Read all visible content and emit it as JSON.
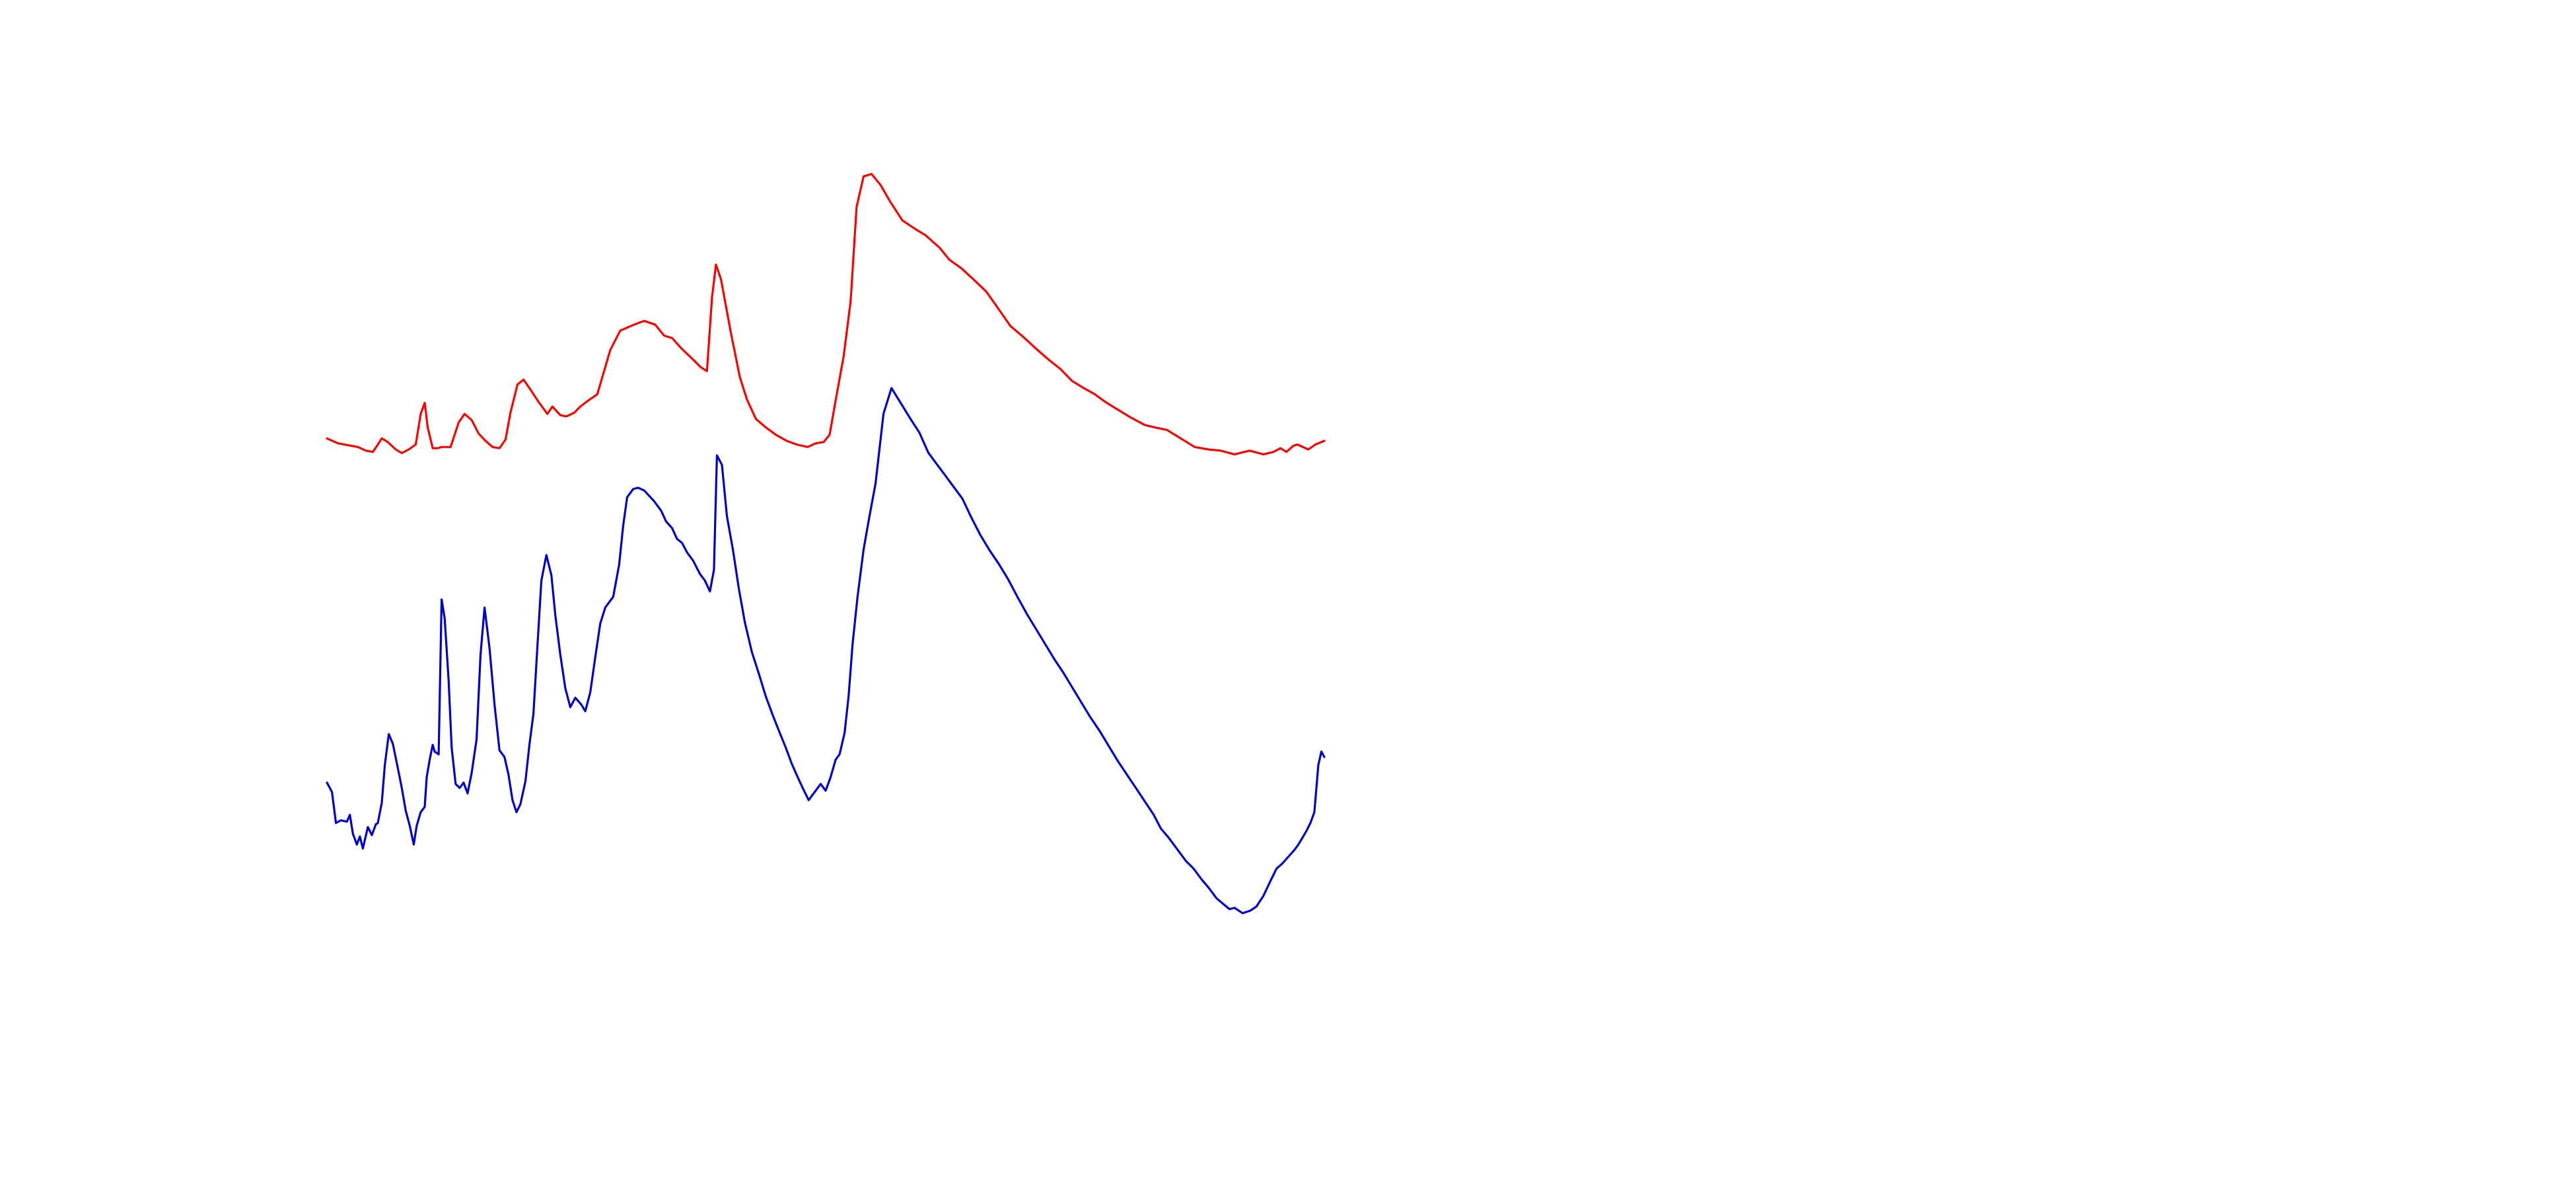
{
  "chart_data": {
    "type": "line",
    "title": "",
    "xlabel": "",
    "ylabel": "",
    "axes_visible": false,
    "grid": false,
    "legend": "none",
    "x_range": [
      0,
      100
    ],
    "y_range": [
      0,
      100
    ],
    "series": [
      {
        "color": "#ff0000",
        "points": [
          [
            0.0,
            52.6
          ],
          [
            1.1,
            52.2
          ],
          [
            3.1,
            51.9
          ],
          [
            3.9,
            51.6
          ],
          [
            4.6,
            51.5
          ],
          [
            5.1,
            52.1
          ],
          [
            5.5,
            52.6
          ],
          [
            6.1,
            52.3
          ],
          [
            6.9,
            51.7
          ],
          [
            7.5,
            51.4
          ],
          [
            8.2,
            51.7
          ],
          [
            8.9,
            52.1
          ],
          [
            9.4,
            54.6
          ],
          [
            9.8,
            55.5
          ],
          [
            10.1,
            53.5
          ],
          [
            10.6,
            51.8
          ],
          [
            11.1,
            51.8
          ],
          [
            11.5,
            51.9
          ],
          [
            12.4,
            51.9
          ],
          [
            13.2,
            53.9
          ],
          [
            13.8,
            54.6
          ],
          [
            14.5,
            54.1
          ],
          [
            15.2,
            53.0
          ],
          [
            15.9,
            52.4
          ],
          [
            16.6,
            51.9
          ],
          [
            17.3,
            51.8
          ],
          [
            17.9,
            52.5
          ],
          [
            18.4,
            54.7
          ],
          [
            19.1,
            57.0
          ],
          [
            19.7,
            57.4
          ],
          [
            20.4,
            56.6
          ],
          [
            21.2,
            55.6
          ],
          [
            22.1,
            54.6
          ],
          [
            22.6,
            55.2
          ],
          [
            23.4,
            54.5
          ],
          [
            24.0,
            54.4
          ],
          [
            24.8,
            54.7
          ],
          [
            25.4,
            55.2
          ],
          [
            26.2,
            55.7
          ],
          [
            27.1,
            56.2
          ],
          [
            28.4,
            59.8
          ],
          [
            29.4,
            61.4
          ],
          [
            30.8,
            61.9
          ],
          [
            31.8,
            62.2
          ],
          [
            32.9,
            61.9
          ],
          [
            33.8,
            61.0
          ],
          [
            34.6,
            60.8
          ],
          [
            35.6,
            59.9
          ],
          [
            36.5,
            59.2
          ],
          [
            37.5,
            58.4
          ],
          [
            38.1,
            58.1
          ],
          [
            38.6,
            64.1
          ],
          [
            39.0,
            66.8
          ],
          [
            39.5,
            65.6
          ],
          [
            40.5,
            61.2
          ],
          [
            41.4,
            57.6
          ],
          [
            42.1,
            55.8
          ],
          [
            43.0,
            54.2
          ],
          [
            44.0,
            53.5
          ],
          [
            45.0,
            52.9
          ],
          [
            46.1,
            52.4
          ],
          [
            47.1,
            52.1
          ],
          [
            48.2,
            51.9
          ],
          [
            49.0,
            52.2
          ],
          [
            49.8,
            52.3
          ],
          [
            50.4,
            52.9
          ],
          [
            51.0,
            55.7
          ],
          [
            51.8,
            59.3
          ],
          [
            52.5,
            63.8
          ],
          [
            53.1,
            71.5
          ],
          [
            53.8,
            74.0
          ],
          [
            54.6,
            74.2
          ],
          [
            55.5,
            73.3
          ],
          [
            56.5,
            71.9
          ],
          [
            57.7,
            70.4
          ],
          [
            59.0,
            69.7
          ],
          [
            60.0,
            69.2
          ],
          [
            61.4,
            68.2
          ],
          [
            62.4,
            67.2
          ],
          [
            63.6,
            66.5
          ],
          [
            64.8,
            65.6
          ],
          [
            66.1,
            64.6
          ],
          [
            67.4,
            63.1
          ],
          [
            68.5,
            61.8
          ],
          [
            69.8,
            60.9
          ],
          [
            71.0,
            60.0
          ],
          [
            72.4,
            59.0
          ],
          [
            73.5,
            58.3
          ],
          [
            74.7,
            57.3
          ],
          [
            75.9,
            56.7
          ],
          [
            77.0,
            56.2
          ],
          [
            78.0,
            55.6
          ],
          [
            79.4,
            54.9
          ],
          [
            80.6,
            54.3
          ],
          [
            82.0,
            53.7
          ],
          [
            83.0,
            53.5
          ],
          [
            84.2,
            53.3
          ],
          [
            85.6,
            52.6
          ],
          [
            87.0,
            51.9
          ],
          [
            88.4,
            51.7
          ],
          [
            89.6,
            51.6
          ],
          [
            91.0,
            51.3
          ],
          [
            92.5,
            51.6
          ],
          [
            93.9,
            51.3
          ],
          [
            94.9,
            51.5
          ],
          [
            95.6,
            51.8
          ],
          [
            96.2,
            51.5
          ],
          [
            96.9,
            52.0
          ],
          [
            97.3,
            52.1
          ],
          [
            98.4,
            51.7
          ],
          [
            99.1,
            52.1
          ],
          [
            100.0,
            52.4
          ]
        ]
      },
      {
        "color": "#0000cc",
        "points": [
          [
            0.0,
            10.6
          ],
          [
            0.5,
            9.9
          ],
          [
            0.9,
            7.6
          ],
          [
            1.4,
            7.8
          ],
          [
            2.0,
            7.7
          ],
          [
            2.3,
            8.2
          ],
          [
            2.6,
            6.8
          ],
          [
            3.0,
            6.0
          ],
          [
            3.3,
            6.6
          ],
          [
            3.6,
            5.7
          ],
          [
            4.1,
            7.3
          ],
          [
            4.5,
            6.7
          ],
          [
            4.9,
            7.5
          ],
          [
            5.1,
            7.6
          ],
          [
            5.5,
            9.1
          ],
          [
            5.8,
            11.9
          ],
          [
            6.2,
            14.2
          ],
          [
            6.6,
            13.5
          ],
          [
            7.1,
            11.7
          ],
          [
            7.5,
            10.2
          ],
          [
            7.9,
            8.5
          ],
          [
            8.3,
            7.4
          ],
          [
            8.7,
            6.0
          ],
          [
            9.0,
            7.4
          ],
          [
            9.4,
            8.4
          ],
          [
            9.8,
            8.8
          ],
          [
            10.0,
            11.0
          ],
          [
            10.3,
            12.3
          ],
          [
            10.6,
            13.4
          ],
          [
            10.8,
            12.9
          ],
          [
            11.2,
            12.7
          ],
          [
            11.5,
            24.2
          ],
          [
            11.8,
            22.8
          ],
          [
            12.2,
            18.2
          ],
          [
            12.5,
            13.2
          ],
          [
            12.9,
            10.5
          ],
          [
            13.3,
            10.2
          ],
          [
            13.7,
            10.6
          ],
          [
            14.1,
            9.8
          ],
          [
            14.5,
            11.3
          ],
          [
            15.0,
            13.8
          ],
          [
            15.4,
            20.1
          ],
          [
            15.8,
            23.6
          ],
          [
            16.3,
            20.6
          ],
          [
            16.8,
            16.4
          ],
          [
            17.3,
            13.0
          ],
          [
            17.8,
            12.5
          ],
          [
            18.2,
            11.2
          ],
          [
            18.6,
            9.3
          ],
          [
            19.0,
            8.4
          ],
          [
            19.4,
            9.0
          ],
          [
            19.9,
            10.7
          ],
          [
            20.3,
            13.4
          ],
          [
            20.7,
            15.7
          ],
          [
            21.1,
            20.7
          ],
          [
            21.5,
            25.6
          ],
          [
            22.0,
            27.5
          ],
          [
            22.5,
            26.0
          ],
          [
            22.9,
            23.0
          ],
          [
            23.4,
            20.1
          ],
          [
            23.9,
            17.6
          ],
          [
            24.4,
            16.2
          ],
          [
            24.9,
            16.9
          ],
          [
            25.5,
            16.4
          ],
          [
            25.9,
            15.9
          ],
          [
            26.4,
            17.3
          ],
          [
            26.9,
            19.9
          ],
          [
            27.4,
            22.4
          ],
          [
            27.9,
            23.6
          ],
          [
            28.7,
            24.4
          ],
          [
            29.3,
            26.8
          ],
          [
            29.7,
            29.7
          ],
          [
            30.1,
            31.8
          ],
          [
            30.7,
            32.4
          ],
          [
            31.2,
            32.5
          ],
          [
            31.8,
            32.3
          ],
          [
            32.3,
            31.9
          ],
          [
            32.8,
            31.5
          ],
          [
            33.5,
            30.8
          ],
          [
            34.0,
            30.0
          ],
          [
            34.6,
            29.5
          ],
          [
            35.1,
            28.7
          ],
          [
            35.6,
            28.4
          ],
          [
            36.1,
            27.7
          ],
          [
            36.7,
            27.1
          ],
          [
            37.4,
            26.1
          ],
          [
            37.9,
            25.6
          ],
          [
            38.4,
            24.8
          ],
          [
            38.8,
            26.4
          ],
          [
            39.1,
            34.9
          ],
          [
            39.6,
            34.2
          ],
          [
            40.1,
            30.4
          ],
          [
            40.7,
            27.9
          ],
          [
            41.3,
            25.0
          ],
          [
            41.9,
            22.5
          ],
          [
            42.6,
            20.3
          ],
          [
            43.3,
            18.7
          ],
          [
            44.0,
            17.0
          ],
          [
            44.7,
            15.6
          ],
          [
            45.4,
            14.3
          ],
          [
            46.0,
            13.2
          ],
          [
            46.6,
            12.0
          ],
          [
            47.2,
            11.0
          ],
          [
            47.7,
            10.2
          ],
          [
            48.3,
            9.3
          ],
          [
            48.9,
            9.9
          ],
          [
            49.5,
            10.5
          ],
          [
            50.0,
            10.0
          ],
          [
            50.5,
            11.0
          ],
          [
            51.0,
            12.3
          ],
          [
            51.4,
            12.7
          ],
          [
            51.9,
            14.3
          ],
          [
            52.3,
            17.0
          ],
          [
            52.7,
            20.9
          ],
          [
            53.2,
            24.4
          ],
          [
            53.8,
            27.9
          ],
          [
            54.4,
            30.4
          ],
          [
            55.0,
            32.8
          ],
          [
            55.8,
            38.0
          ],
          [
            56.6,
            39.9
          ],
          [
            57.6,
            38.7
          ],
          [
            58.6,
            37.5
          ],
          [
            59.4,
            36.6
          ],
          [
            60.3,
            35.1
          ],
          [
            61.2,
            34.2
          ],
          [
            62.0,
            33.4
          ],
          [
            62.8,
            32.6
          ],
          [
            63.7,
            31.7
          ],
          [
            64.6,
            30.3
          ],
          [
            65.5,
            29.0
          ],
          [
            66.4,
            27.9
          ],
          [
            67.4,
            26.8
          ],
          [
            68.3,
            25.7
          ],
          [
            69.3,
            24.3
          ],
          [
            70.2,
            23.1
          ],
          [
            71.1,
            22.0
          ],
          [
            72.0,
            20.9
          ],
          [
            72.9,
            19.8
          ],
          [
            73.8,
            18.8
          ],
          [
            74.7,
            17.7
          ],
          [
            75.6,
            16.6
          ],
          [
            76.5,
            15.5
          ],
          [
            77.5,
            14.4
          ],
          [
            78.4,
            13.3
          ],
          [
            79.3,
            12.2
          ],
          [
            80.2,
            11.2
          ],
          [
            81.2,
            10.1
          ],
          [
            82.0,
            9.2
          ],
          [
            82.9,
            8.2
          ],
          [
            83.6,
            7.2
          ],
          [
            84.4,
            6.5
          ],
          [
            85.2,
            5.7
          ],
          [
            86.1,
            4.8
          ],
          [
            86.9,
            4.2
          ],
          [
            87.7,
            3.4
          ],
          [
            88.4,
            2.8
          ],
          [
            89.2,
            2.0
          ],
          [
            90.0,
            1.5
          ],
          [
            90.5,
            1.2
          ],
          [
            91.0,
            1.3
          ],
          [
            91.8,
            0.9
          ],
          [
            92.6,
            1.1
          ],
          [
            93.2,
            1.4
          ],
          [
            93.9,
            2.2
          ],
          [
            94.6,
            3.3
          ],
          [
            95.2,
            4.2
          ],
          [
            95.8,
            4.6
          ],
          [
            96.4,
            5.1
          ],
          [
            97.0,
            5.6
          ],
          [
            97.4,
            6.0
          ],
          [
            97.8,
            6.5
          ],
          [
            98.2,
            7.0
          ],
          [
            98.6,
            7.6
          ],
          [
            99.0,
            8.4
          ],
          [
            99.4,
            11.9
          ],
          [
            99.7,
            12.9
          ],
          [
            100.0,
            12.5
          ]
        ]
      }
    ]
  }
}
